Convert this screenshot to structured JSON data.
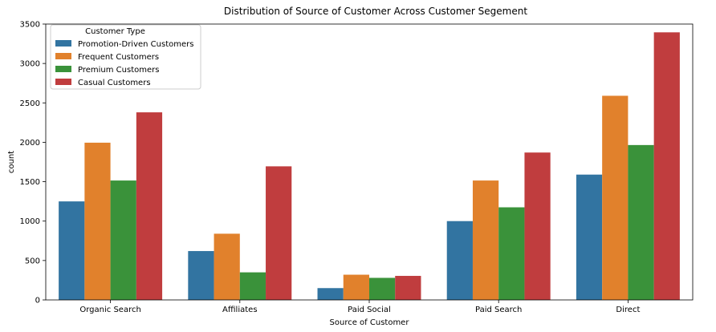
{
  "chart_data": {
    "type": "bar",
    "title": "Distribution of Source of Customer Across Customer Segement",
    "xlabel": "Source of Customer",
    "ylabel": "count",
    "ylim": [
      0,
      3500
    ],
    "yticks": [
      0,
      500,
      1000,
      1500,
      2000,
      2500,
      3000,
      3500
    ],
    "grid": false,
    "categories": [
      "Organic Search",
      "Affiliates",
      "Paid Social",
      "Paid Search",
      "Direct"
    ],
    "legend": {
      "title": "Customer Type",
      "placement": "top-left"
    },
    "series": [
      {
        "name": "Promotion-Driven Customers",
        "color": "#3274a1",
        "values": [
          1250,
          620,
          150,
          1000,
          1590
        ]
      },
      {
        "name": "Frequent Customers",
        "color": "#e1812c",
        "values": [
          1995,
          840,
          320,
          1515,
          2590
        ]
      },
      {
        "name": "Premium Customers",
        "color": "#3a923a",
        "values": [
          1515,
          350,
          280,
          1175,
          1965
        ]
      },
      {
        "name": "Casual Customers",
        "color": "#c03d3e",
        "values": [
          2380,
          1695,
          305,
          1870,
          3395
        ]
      }
    ]
  }
}
